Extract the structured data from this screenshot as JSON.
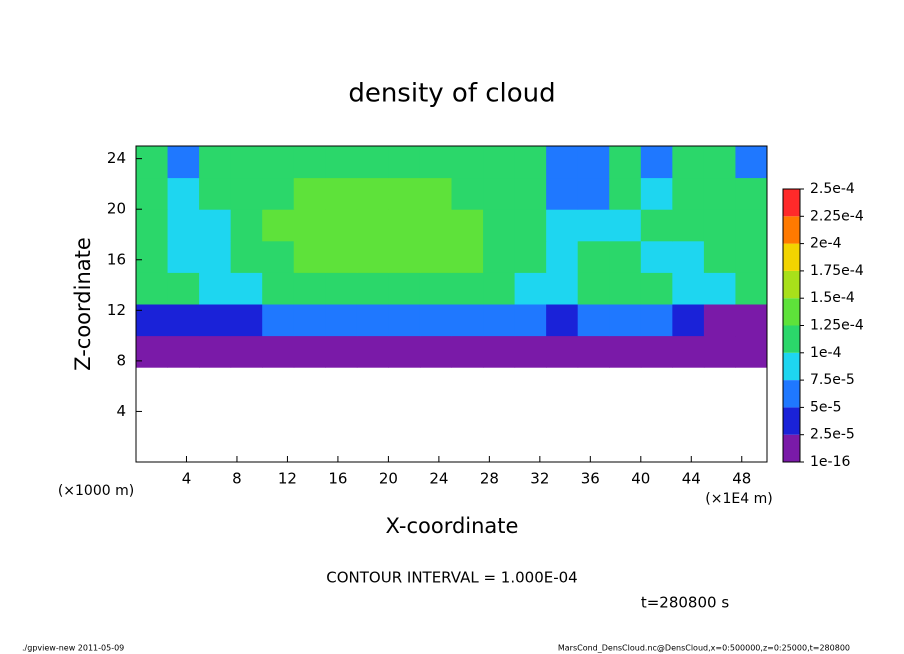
{
  "chart_data": {
    "type": "heatmap",
    "title": "density of cloud",
    "x_label": "X-coordinate",
    "y_label": "Z-coordinate",
    "x_unit": "(×1E4 m)",
    "y_unit": "(×1000 m)",
    "annotations": [
      "CONTOUR INTERVAL = 1.000E-04",
      "t=280800 s"
    ],
    "footer_left": "./gpview-new  2011-05-09",
    "footer_right": "MarsCond_DensCloud.nc@DensCloud,x=0:500000,z=0:25000,t=280800",
    "xlim": [
      0,
      50
    ],
    "ylim": [
      0,
      25
    ],
    "xticks": [
      4,
      8,
      12,
      16,
      20,
      24,
      28,
      32,
      36,
      40,
      44,
      48
    ],
    "yticks": [
      4,
      8,
      12,
      16,
      20,
      24
    ],
    "x": [
      1.25,
      3.75,
      6.25,
      8.75,
      11.25,
      13.75,
      16.25,
      18.75,
      21.25,
      23.75,
      26.25,
      28.75,
      31.25,
      33.75,
      36.25,
      38.75,
      41.25,
      43.75,
      46.25,
      48.75
    ],
    "y": [
      8.75,
      11.25,
      13.75,
      16.25,
      18.75,
      21.25,
      23.75
    ],
    "values": [
      [
        1e-16,
        1e-16,
        1e-16,
        1e-16,
        1e-16,
        1e-16,
        1e-16,
        1e-16,
        1e-16,
        1e-16,
        1e-16,
        1e-16,
        1e-16,
        1e-16,
        1e-16,
        1e-16,
        1e-16,
        1e-16,
        1e-16,
        1e-16
      ],
      [
        3e-05,
        3e-05,
        4e-05,
        4e-05,
        5e-05,
        6e-05,
        6e-05,
        7e-05,
        7e-05,
        7e-05,
        7e-05,
        7e-05,
        5e-05,
        4e-05,
        5e-05,
        6e-05,
        5e-05,
        3e-05,
        2e-05,
        2e-05
      ],
      [
        0.00011,
        0.000105,
        8e-05,
        8e-05,
        0.000105,
        0.00011,
        0.00011,
        0.00011,
        0.00011,
        0.00011,
        0.00011,
        0.00011,
        8e-05,
        8e-05,
        0.000105,
        0.000105,
        0.000105,
        8e-05,
        8e-05,
        0.000105
      ],
      [
        0.00012,
        8e-05,
        8e-05,
        0.00011,
        0.00012,
        0.000125,
        0.000125,
        0.00013,
        0.00013,
        0.00013,
        0.000125,
        0.00012,
        0.00011,
        8e-05,
        0.00011,
        0.000115,
        9e-05,
        9e-05,
        0.000115,
        0.00012
      ],
      [
        0.00012,
        9e-05,
        9e-05,
        0.00012,
        0.000125,
        0.00013,
        0.00013,
        0.00013,
        0.00013,
        0.00013,
        0.000125,
        0.00012,
        0.00011,
        8e-05,
        8e-05,
        9e-05,
        0.00011,
        0.000115,
        0.00012,
        0.00012
      ],
      [
        0.000115,
        8e-05,
        0.00011,
        0.00012,
        0.00012,
        0.000125,
        0.000125,
        0.000125,
        0.000125,
        0.000125,
        0.00012,
        0.00012,
        0.00011,
        7e-05,
        7e-05,
        0.00011,
        8e-05,
        0.00011,
        0.000115,
        0.000115
      ],
      [
        0.000105,
        6e-05,
        0.000105,
        0.00011,
        0.00011,
        0.00011,
        0.00011,
        0.00011,
        0.00011,
        0.00011,
        0.00011,
        0.00011,
        0.000105,
        6e-05,
        6e-05,
        0.000105,
        6e-05,
        0.000105,
        0.000105,
        6e-05
      ]
    ],
    "levels": [
      {
        "value": 1e-16,
        "label": "1e-16"
      },
      {
        "value": 2.5e-05,
        "label": "2.5e-5"
      },
      {
        "value": 5e-05,
        "label": "5e-5"
      },
      {
        "value": 7.5e-05,
        "label": "7.5e-5"
      },
      {
        "value": 0.0001,
        "label": "1e-4"
      },
      {
        "value": 0.000125,
        "label": "1.25e-4"
      },
      {
        "value": 0.00015,
        "label": "1.5e-4"
      },
      {
        "value": 0.000175,
        "label": "1.75e-4"
      },
      {
        "value": 0.0002,
        "label": "2e-4"
      },
      {
        "value": 0.000225,
        "label": "2.25e-4"
      },
      {
        "value": 0.00025,
        "label": "2.5e-4"
      }
    ],
    "colors": [
      "#7a1aa8",
      "#1a22d8",
      "#1f78ff",
      "#1ed6f0",
      "#2bd76a",
      "#5ee23a",
      "#a8e01a",
      "#f2d400",
      "#ff7a00",
      "#ff2a2a"
    ]
  }
}
